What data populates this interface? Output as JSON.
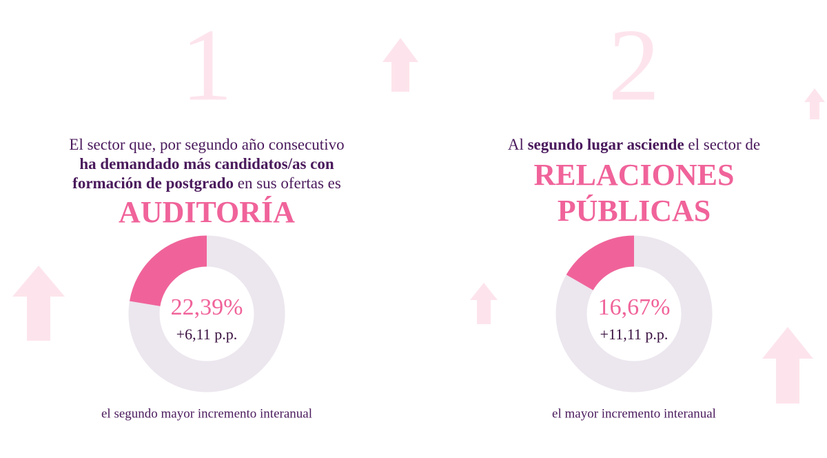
{
  "panels": [
    {
      "number": "1",
      "intro": [
        [
          {
            "text": "El sector que, por segundo año consecutivo",
            "bold": false
          }
        ],
        [
          {
            "text": "ha demandado más candidatos/as con",
            "bold": true
          }
        ],
        [
          {
            "text": "formación de postgrado",
            "bold": true
          },
          {
            "text": " en sus ofertas es",
            "bold": false
          }
        ]
      ],
      "sector": [
        "AUDITORÍA"
      ],
      "value": 22.39,
      "value_label": "22,39%",
      "change": "+6,11 p.p.",
      "caption": "el segundo mayor incremento interanual"
    },
    {
      "number": "2",
      "intro": [
        [
          {
            "text": "Al ",
            "bold": false
          },
          {
            "text": "segundo lugar asciende",
            "bold": true
          },
          {
            "text": " el sector de",
            "bold": false
          }
        ]
      ],
      "sector": [
        "RELACIONES",
        "PÚBLICAS"
      ],
      "value": 16.67,
      "value_label": "16,67%",
      "change": "+11,11 p.p.",
      "caption": "el mayor incremento interanual"
    }
  ]
}
